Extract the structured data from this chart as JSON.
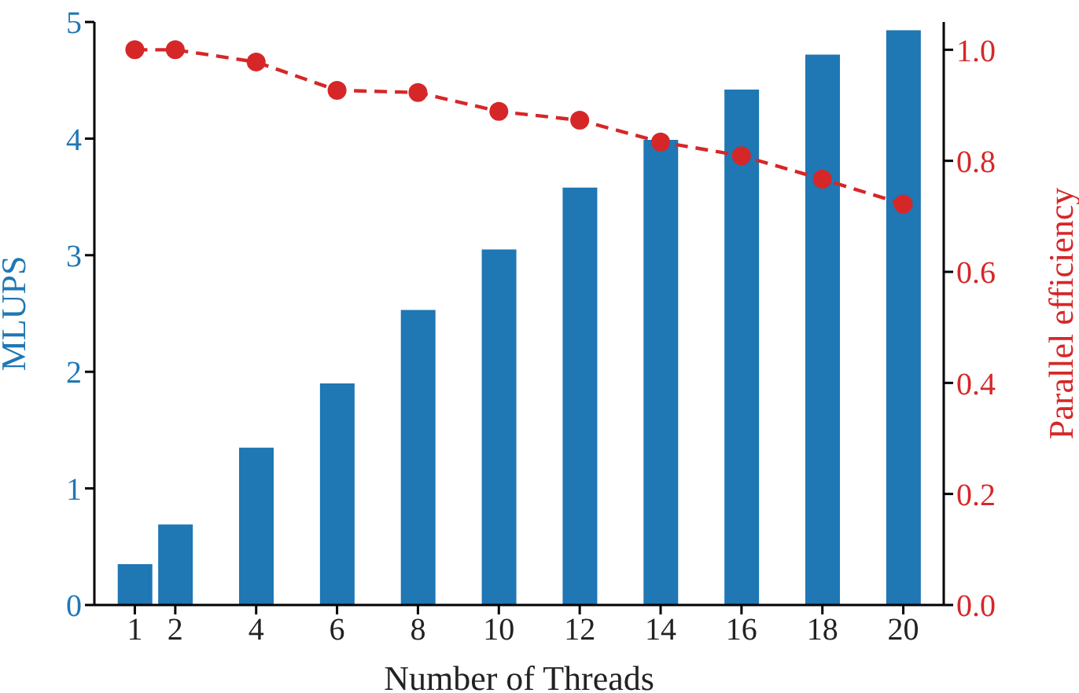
{
  "chart_data": {
    "type": "bar",
    "xlabel": "Number of Threads",
    "ylabel": "MLUPS",
    "y2label": "Parallel efficiency",
    "x": [
      1,
      2,
      4,
      6,
      8,
      10,
      12,
      14,
      16,
      18,
      20
    ],
    "series": [
      {
        "color": "#1f77b4",
        "values": [
          0.35,
          0.69,
          1.35,
          1.9,
          2.53,
          3.05,
          3.58,
          3.99,
          4.42,
          4.72,
          4.93
        ]
      },
      {
        "type": "line",
        "axis": "y2",
        "color": "#d62728",
        "values": [
          1.0,
          1.0,
          0.978,
          0.927,
          0.923,
          0.889,
          0.873,
          0.834,
          0.809,
          0.767,
          0.722
        ]
      }
    ],
    "xlim": [
      0,
      21
    ],
    "xticks": [
      1,
      2,
      4,
      6,
      8,
      10,
      12,
      14,
      16,
      18,
      20
    ],
    "ylim": [
      0,
      5
    ],
    "yticks": [
      0,
      1,
      2,
      3,
      4,
      5
    ],
    "y2lim": [
      0,
      1.05
    ],
    "y2ticks": [
      {
        "value": 0,
        "label": "0.0"
      },
      {
        "value": 0.2,
        "label": "0.2"
      },
      {
        "value": 0.4,
        "label": "0.4"
      },
      {
        "value": 0.6,
        "label": "0.6"
      },
      {
        "value": 0.8,
        "label": "0.8"
      },
      {
        "value": 1,
        "label": "1.0"
      }
    ],
    "grid": false,
    "marker": "circle",
    "line_style": "dashed"
  }
}
